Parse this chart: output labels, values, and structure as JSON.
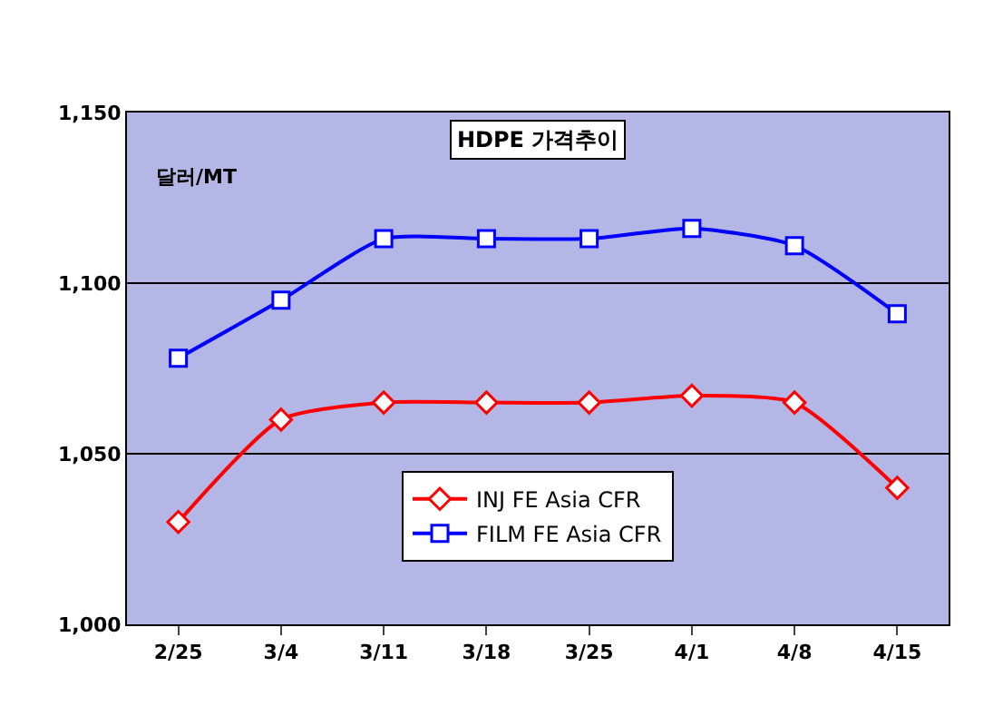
{
  "chart_data": {
    "type": "line",
    "title": "HDPE 가격추이",
    "ylabel": "달러/MT",
    "categories": [
      "2/25",
      "3/4",
      "3/11",
      "3/18",
      "3/25",
      "4/1",
      "4/8",
      "4/15"
    ],
    "series": [
      {
        "name": "INJ FE Asia CFR",
        "color": "#ff0000",
        "marker": "diamond",
        "values": [
          1030,
          1060,
          1065,
          1065,
          1065,
          1067,
          1065,
          1040
        ]
      },
      {
        "name": "FILM FE Asia CFR",
        "color": "#0000ff",
        "marker": "square",
        "values": [
          1078,
          1095,
          1113,
          1113,
          1113,
          1116,
          1111,
          1091
        ]
      }
    ],
    "ylim": [
      1000,
      1150
    ],
    "yticks": [
      {
        "value": 1000,
        "label": "1,000"
      },
      {
        "value": 1050,
        "label": "1,050"
      },
      {
        "value": 1100,
        "label": "1,100"
      },
      {
        "value": 1150,
        "label": "1,150"
      }
    ],
    "grid": "y",
    "legend": "bottom"
  }
}
